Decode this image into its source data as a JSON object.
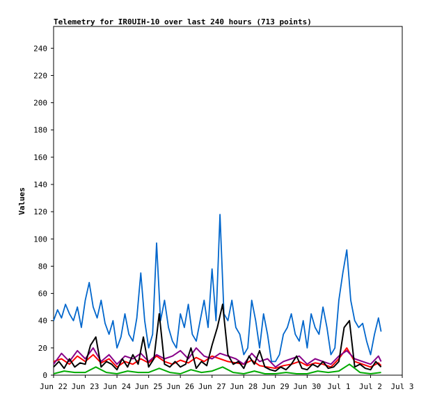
{
  "chart_data": {
    "type": "line",
    "title": "Telemetry for IR0UIH-10 over last 240 hours (713 points)",
    "xlabel": "",
    "ylabel": "Values",
    "x_categories": [
      "Jun 22",
      "Jun 23",
      "Jun 24",
      "Jun 25",
      "Jun 26",
      "Jun 27",
      "Jun 28",
      "Jun 29",
      "Jun 30",
      "Jul 1",
      "Jul 2",
      "Jul 3"
    ],
    "xlim_days": [
      0,
      11
    ],
    "ylim": [
      0,
      256
    ],
    "yticks": [
      0,
      20,
      40,
      60,
      80,
      100,
      120,
      140,
      160,
      180,
      200,
      220,
      240
    ],
    "grid": false,
    "legend": "none",
    "colors": {
      "blue": "#0066cc",
      "red": "#ff0000",
      "purple": "#880088",
      "black": "#000000",
      "green": "#00aa00"
    },
    "series": [
      {
        "color": "#0066cc",
        "points": [
          [
            "Jun 22 00:00",
            40
          ],
          [
            "Jun 22 03:00",
            48
          ],
          [
            "Jun 22 06:00",
            42
          ],
          [
            "Jun 22 09:00",
            52
          ],
          [
            "Jun 22 12:00",
            45
          ],
          [
            "Jun 22 15:00",
            40
          ],
          [
            "Jun 22 18:00",
            50
          ],
          [
            "Jun 22 21:00",
            35
          ],
          [
            "Jun 23 00:00",
            55
          ],
          [
            "Jun 23 03:00",
            68
          ],
          [
            "Jun 23 06:00",
            50
          ],
          [
            "Jun 23 09:00",
            42
          ],
          [
            "Jun 23 12:00",
            55
          ],
          [
            "Jun 23 15:00",
            38
          ],
          [
            "Jun 23 18:00",
            30
          ],
          [
            "Jun 23 21:00",
            40
          ],
          [
            "Jun 24 00:00",
            20
          ],
          [
            "Jun 24 03:00",
            28
          ],
          [
            "Jun 24 06:00",
            45
          ],
          [
            "Jun 24 09:00",
            30
          ],
          [
            "Jun 24 12:00",
            25
          ],
          [
            "Jun 24 15:00",
            42
          ],
          [
            "Jun 24 18:00",
            75
          ],
          [
            "Jun 24 21:00",
            40
          ],
          [
            "Jun 25 00:00",
            20
          ],
          [
            "Jun 25 03:00",
            30
          ],
          [
            "Jun 25 06:00",
            97
          ],
          [
            "Jun 25 09:00",
            40
          ],
          [
            "Jun 25 12:00",
            55
          ],
          [
            "Jun 25 15:00",
            35
          ],
          [
            "Jun 25 18:00",
            25
          ],
          [
            "Jun 25 21:00",
            20
          ],
          [
            "Jun 26 00:00",
            45
          ],
          [
            "Jun 26 03:00",
            35
          ],
          [
            "Jun 26 06:00",
            52
          ],
          [
            "Jun 26 09:00",
            30
          ],
          [
            "Jun 26 12:00",
            25
          ],
          [
            "Jun 26 15:00",
            40
          ],
          [
            "Jun 26 18:00",
            55
          ],
          [
            "Jun 26 21:00",
            35
          ],
          [
            "Jun 27 00:00",
            78
          ],
          [
            "Jun 27 03:00",
            40
          ],
          [
            "Jun 27 06:00",
            118
          ],
          [
            "Jun 27 09:00",
            45
          ],
          [
            "Jun 27 12:00",
            40
          ],
          [
            "Jun 27 15:00",
            55
          ],
          [
            "Jun 27 18:00",
            35
          ],
          [
            "Jun 27 21:00",
            30
          ],
          [
            "Jun 28 00:00",
            15
          ],
          [
            "Jun 28 03:00",
            20
          ],
          [
            "Jun 28 06:00",
            55
          ],
          [
            "Jun 28 09:00",
            40
          ],
          [
            "Jun 28 12:00",
            20
          ],
          [
            "Jun 28 15:00",
            45
          ],
          [
            "Jun 28 18:00",
            30
          ],
          [
            "Jun 28 21:00",
            10
          ],
          [
            "Jun 29 00:00",
            10
          ],
          [
            "Jun 29 03:00",
            15
          ],
          [
            "Jun 29 06:00",
            30
          ],
          [
            "Jun 29 09:00",
            35
          ],
          [
            "Jun 29 12:00",
            45
          ],
          [
            "Jun 29 15:00",
            30
          ],
          [
            "Jun 29 18:00",
            25
          ],
          [
            "Jun 29 21:00",
            40
          ],
          [
            "Jun 30 00:00",
            20
          ],
          [
            "Jun 30 03:00",
            45
          ],
          [
            "Jun 30 06:00",
            35
          ],
          [
            "Jun 30 09:00",
            30
          ],
          [
            "Jun 30 12:00",
            50
          ],
          [
            "Jun 30 15:00",
            35
          ],
          [
            "Jun 30 18:00",
            15
          ],
          [
            "Jun 30 21:00",
            20
          ],
          [
            "Jul 1 00:00",
            55
          ],
          [
            "Jul 1 03:00",
            75
          ],
          [
            "Jul 1 06:00",
            92
          ],
          [
            "Jul 1 09:00",
            55
          ],
          [
            "Jul 1 12:00",
            40
          ],
          [
            "Jul 1 15:00",
            35
          ],
          [
            "Jul 1 18:00",
            38
          ],
          [
            "Jul 1 21:00",
            25
          ],
          [
            "Jul 2 00:00",
            15
          ],
          [
            "Jul 2 03:00",
            30
          ],
          [
            "Jul 2 06:00",
            42
          ],
          [
            "Jul 2 08:00",
            32
          ]
        ]
      },
      {
        "color": "#ff0000",
        "points": [
          [
            "Jun 22 00:00",
            10
          ],
          [
            "Jun 22 06:00",
            12
          ],
          [
            "Jun 22 12:00",
            8
          ],
          [
            "Jun 22 18:00",
            14
          ],
          [
            "Jun 23 00:00",
            10
          ],
          [
            "Jun 23 06:00",
            15
          ],
          [
            "Jun 23 12:00",
            9
          ],
          [
            "Jun 23 18:00",
            12
          ],
          [
            "Jun 24 00:00",
            6
          ],
          [
            "Jun 24 06:00",
            10
          ],
          [
            "Jun 24 12:00",
            8
          ],
          [
            "Jun 24 18:00",
            12
          ],
          [
            "Jun 25 00:00",
            9
          ],
          [
            "Jun 25 06:00",
            14
          ],
          [
            "Jun 25 12:00",
            10
          ],
          [
            "Jun 25 18:00",
            8
          ],
          [
            "Jun 26 00:00",
            11
          ],
          [
            "Jun 26 06:00",
            9
          ],
          [
            "Jun 26 12:00",
            13
          ],
          [
            "Jun 26 18:00",
            10
          ],
          [
            "Jun 27 00:00",
            14
          ],
          [
            "Jun 27 06:00",
            12
          ],
          [
            "Jun 27 12:00",
            10
          ],
          [
            "Jun 27 18:00",
            9
          ],
          [
            "Jun 28 00:00",
            8
          ],
          [
            "Jun 28 06:00",
            11
          ],
          [
            "Jun 28 12:00",
            7
          ],
          [
            "Jun 28 18:00",
            6
          ],
          [
            "Jun 29 00:00",
            5
          ],
          [
            "Jun 29 06:00",
            7
          ],
          [
            "Jun 29 12:00",
            8
          ],
          [
            "Jun 29 18:00",
            10
          ],
          [
            "Jun 30 00:00",
            7
          ],
          [
            "Jun 30 06:00",
            9
          ],
          [
            "Jun 30 12:00",
            8
          ],
          [
            "Jun 30 18:00",
            6
          ],
          [
            "Jul 1 00:00",
            12
          ],
          [
            "Jul 1 06:00",
            20
          ],
          [
            "Jul 1 12:00",
            10
          ],
          [
            "Jul 1 18:00",
            8
          ],
          [
            "Jul 2 00:00",
            6
          ],
          [
            "Jul 2 06:00",
            9
          ],
          [
            "Jul 2 08:00",
            7
          ]
        ]
      },
      {
        "color": "#880088",
        "points": [
          [
            "Jun 22 00:00",
            8
          ],
          [
            "Jun 22 06:00",
            16
          ],
          [
            "Jun 22 12:00",
            10
          ],
          [
            "Jun 22 18:00",
            18
          ],
          [
            "Jun 23 00:00",
            12
          ],
          [
            "Jun 23 06:00",
            20
          ],
          [
            "Jun 23 12:00",
            10
          ],
          [
            "Jun 23 18:00",
            15
          ],
          [
            "Jun 24 00:00",
            8
          ],
          [
            "Jun 24 06:00",
            14
          ],
          [
            "Jun 24 12:00",
            12
          ],
          [
            "Jun 24 18:00",
            16
          ],
          [
            "Jun 25 00:00",
            10
          ],
          [
            "Jun 25 06:00",
            15
          ],
          [
            "Jun 25 12:00",
            12
          ],
          [
            "Jun 25 18:00",
            14
          ],
          [
            "Jun 26 00:00",
            18
          ],
          [
            "Jun 26 06:00",
            12
          ],
          [
            "Jun 26 12:00",
            20
          ],
          [
            "Jun 26 18:00",
            14
          ],
          [
            "Jun 27 00:00",
            12
          ],
          [
            "Jun 27 06:00",
            16
          ],
          [
            "Jun 27 12:00",
            14
          ],
          [
            "Jun 27 18:00",
            12
          ],
          [
            "Jun 28 00:00",
            8
          ],
          [
            "Jun 28 06:00",
            16
          ],
          [
            "Jun 28 12:00",
            10
          ],
          [
            "Jun 28 18:00",
            12
          ],
          [
            "Jun 29 00:00",
            6
          ],
          [
            "Jun 29 06:00",
            10
          ],
          [
            "Jun 29 12:00",
            12
          ],
          [
            "Jun 29 18:00",
            14
          ],
          [
            "Jun 30 00:00",
            8
          ],
          [
            "Jun 30 06:00",
            12
          ],
          [
            "Jun 30 12:00",
            10
          ],
          [
            "Jun 30 18:00",
            8
          ],
          [
            "Jul 1 00:00",
            14
          ],
          [
            "Jul 1 06:00",
            18
          ],
          [
            "Jul 1 12:00",
            12
          ],
          [
            "Jul 1 18:00",
            10
          ],
          [
            "Jul 2 00:00",
            8
          ],
          [
            "Jul 2 06:00",
            14
          ],
          [
            "Jul 2 08:00",
            10
          ]
        ]
      },
      {
        "color": "#000000",
        "points": [
          [
            "Jun 22 00:00",
            6
          ],
          [
            "Jun 22 04:00",
            10
          ],
          [
            "Jun 22 08:00",
            5
          ],
          [
            "Jun 22 12:00",
            12
          ],
          [
            "Jun 22 16:00",
            6
          ],
          [
            "Jun 22 20:00",
            9
          ],
          [
            "Jun 23 00:00",
            8
          ],
          [
            "Jun 23 04:00",
            22
          ],
          [
            "Jun 23 08:00",
            28
          ],
          [
            "Jun 23 12:00",
            6
          ],
          [
            "Jun 23 16:00",
            10
          ],
          [
            "Jun 23 20:00",
            8
          ],
          [
            "Jun 24 00:00",
            4
          ],
          [
            "Jun 24 04:00",
            12
          ],
          [
            "Jun 24 08:00",
            6
          ],
          [
            "Jun 24 12:00",
            15
          ],
          [
            "Jun 24 16:00",
            8
          ],
          [
            "Jun 24 20:00",
            28
          ],
          [
            "Jun 25 00:00",
            6
          ],
          [
            "Jun 25 04:00",
            12
          ],
          [
            "Jun 25 08:00",
            45
          ],
          [
            "Jun 25 12:00",
            8
          ],
          [
            "Jun 25 16:00",
            6
          ],
          [
            "Jun 25 20:00",
            10
          ],
          [
            "Jun 26 00:00",
            6
          ],
          [
            "Jun 26 04:00",
            8
          ],
          [
            "Jun 26 08:00",
            20
          ],
          [
            "Jun 26 12:00",
            5
          ],
          [
            "Jun 26 16:00",
            10
          ],
          [
            "Jun 26 20:00",
            7
          ],
          [
            "Jun 27 00:00",
            22
          ],
          [
            "Jun 27 04:00",
            35
          ],
          [
            "Jun 27 08:00",
            52
          ],
          [
            "Jun 27 12:00",
            15
          ],
          [
            "Jun 27 16:00",
            8
          ],
          [
            "Jun 27 20:00",
            10
          ],
          [
            "Jun 28 00:00",
            5
          ],
          [
            "Jun 28 04:00",
            14
          ],
          [
            "Jun 28 08:00",
            8
          ],
          [
            "Jun 28 12:00",
            18
          ],
          [
            "Jun 28 16:00",
            6
          ],
          [
            "Jun 28 20:00",
            4
          ],
          [
            "Jun 29 00:00",
            3
          ],
          [
            "Jun 29 04:00",
            6
          ],
          [
            "Jun 29 08:00",
            4
          ],
          [
            "Jun 29 12:00",
            8
          ],
          [
            "Jun 29 16:00",
            14
          ],
          [
            "Jun 29 20:00",
            5
          ],
          [
            "Jun 30 00:00",
            4
          ],
          [
            "Jun 30 04:00",
            8
          ],
          [
            "Jun 30 08:00",
            6
          ],
          [
            "Jun 30 12:00",
            10
          ],
          [
            "Jun 30 16:00",
            5
          ],
          [
            "Jun 30 20:00",
            6
          ],
          [
            "Jul 1 00:00",
            10
          ],
          [
            "Jul 1 04:00",
            35
          ],
          [
            "Jul 1 08:00",
            40
          ],
          [
            "Jul 1 12:00",
            6
          ],
          [
            "Jul 1 16:00",
            8
          ],
          [
            "Jul 1 20:00",
            5
          ],
          [
            "Jul 2 00:00",
            4
          ],
          [
            "Jul 2 04:00",
            10
          ],
          [
            "Jul 2 08:00",
            6
          ]
        ]
      },
      {
        "color": "#00aa00",
        "points": [
          [
            "Jun 22 00:00",
            1
          ],
          [
            "Jun 22 08:00",
            3
          ],
          [
            "Jun 22 16:00",
            2
          ],
          [
            "Jun 23 00:00",
            2
          ],
          [
            "Jun 23 08:00",
            6
          ],
          [
            "Jun 23 16:00",
            2
          ],
          [
            "Jun 24 00:00",
            1
          ],
          [
            "Jun 24 08:00",
            3
          ],
          [
            "Jun 24 16:00",
            2
          ],
          [
            "Jun 25 00:00",
            2
          ],
          [
            "Jun 25 08:00",
            5
          ],
          [
            "Jun 25 16:00",
            2
          ],
          [
            "Jun 26 00:00",
            1
          ],
          [
            "Jun 26 08:00",
            4
          ],
          [
            "Jun 26 16:00",
            2
          ],
          [
            "Jun 27 00:00",
            3
          ],
          [
            "Jun 27 08:00",
            6
          ],
          [
            "Jun 27 16:00",
            2
          ],
          [
            "Jun 28 00:00",
            1
          ],
          [
            "Jun 28 08:00",
            3
          ],
          [
            "Jun 28 16:00",
            1
          ],
          [
            "Jun 29 00:00",
            1
          ],
          [
            "Jun 29 08:00",
            2
          ],
          [
            "Jun 29 16:00",
            1
          ],
          [
            "Jun 30 00:00",
            1
          ],
          [
            "Jun 30 08:00",
            3
          ],
          [
            "Jun 30 16:00",
            2
          ],
          [
            "Jul 1 00:00",
            3
          ],
          [
            "Jul 1 08:00",
            8
          ],
          [
            "Jul 1 16:00",
            2
          ],
          [
            "Jul 2 00:00",
            1
          ],
          [
            "Jul 2 08:00",
            2
          ]
        ]
      }
    ]
  }
}
